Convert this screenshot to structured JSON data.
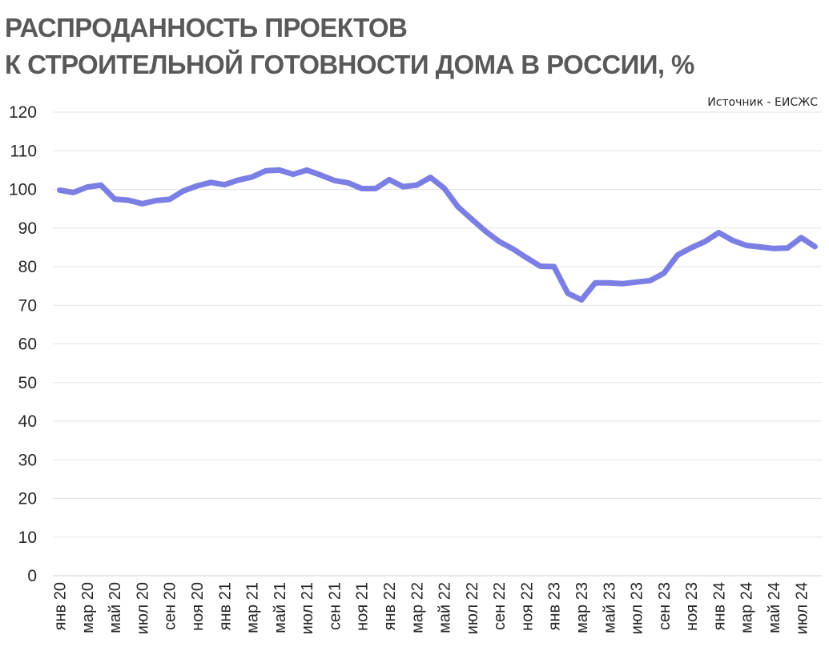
{
  "chart_data": {
    "type": "line",
    "title_lines": [
      "РАСПРОДАННОСТЬ ПРОЕКТОВ",
      "К СТРОИТЕЛЬНОЙ ГОТОВНОСТИ ДОМА В РОССИИ, %"
    ],
    "source": "Источник - ЕИСЖС",
    "ylim": [
      0,
      120
    ],
    "y_ticks": [
      "0",
      "10",
      "20",
      "30",
      "40",
      "50",
      "60",
      "70",
      "80",
      "90",
      "100",
      "110",
      "120"
    ],
    "grid": true,
    "line_color": "#7b7fe4",
    "x_tick_labels": [
      "янв 20",
      "мар 20",
      "май 20",
      "июл 20",
      "сен 20",
      "ноя 20",
      "янв 21",
      "мар 21",
      "май 21",
      "июл 21",
      "сен 21",
      "ноя 21",
      "янв 22",
      "мар 22",
      "май 22",
      "июл 22",
      "сен 22",
      "ноя 22",
      "янв 23",
      "мар 23",
      "май 23",
      "июл 23",
      "сен 23",
      "ноя 23",
      "янв 24",
      "мар 24",
      "май 24",
      "июл 24"
    ],
    "x": [
      "янв 20",
      "фев 20",
      "мар 20",
      "апр 20",
      "май 20",
      "июн 20",
      "июл 20",
      "авг 20",
      "сен 20",
      "окт 20",
      "ноя 20",
      "дек 20",
      "янв 21",
      "фев 21",
      "мар 21",
      "апр 21",
      "май 21",
      "июн 21",
      "июл 21",
      "авг 21",
      "сен 21",
      "окт 21",
      "ноя 21",
      "дек 21",
      "янв 22",
      "фев 22",
      "мар 22",
      "апр 22",
      "май 22",
      "июн 22",
      "июл 22",
      "авг 22",
      "сен 22",
      "окт 22",
      "ноя 22",
      "дек 22",
      "янв 23",
      "фев 23",
      "мар 23",
      "апр 23",
      "май 23",
      "июн 23",
      "июл 23",
      "авг 23",
      "сен 23",
      "окт 23",
      "ноя 23",
      "дек 23",
      "янв 24",
      "фев 24",
      "мар 24",
      "апр 24",
      "май 24",
      "июн 24",
      "июл 24",
      "авг 24"
    ],
    "series": [
      {
        "values": [
          99.8,
          99.2,
          100.6,
          101.1,
          97.5,
          97.2,
          96.3,
          97.1,
          97.4,
          99.6,
          100.9,
          101.8,
          101.2,
          102.4,
          103.2,
          104.8,
          105.0,
          103.9,
          105.0,
          103.7,
          102.3,
          101.7,
          100.2,
          100.2,
          102.5,
          100.7,
          101.1,
          103.1,
          100.3,
          95.5,
          92.3,
          89.2,
          86.5,
          84.6,
          82.3,
          80.1,
          80.0,
          73.1,
          71.4,
          75.8,
          75.8,
          75.6,
          76.0,
          76.4,
          78.3,
          83.0,
          84.9,
          86.5,
          88.8,
          86.8,
          85.5,
          85.1,
          84.7,
          84.8,
          87.5,
          85.2
        ]
      }
    ]
  }
}
